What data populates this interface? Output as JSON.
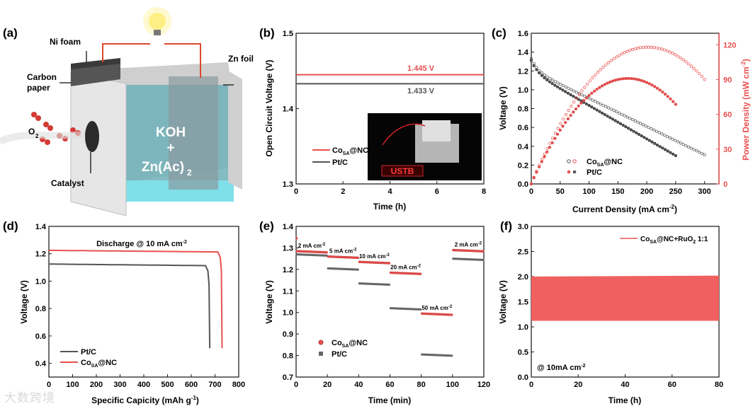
{
  "watermark": "大数跨境",
  "colors": {
    "red": "#e8504f",
    "gray": "#555555",
    "black": "#1a1a1a",
    "pinkline": "#f08080"
  },
  "panel_a": {
    "label": "(a)",
    "ni_foam": "Ni foam",
    "carbon_paper_1": "Carbon",
    "carbon_paper_2": "paper",
    "zn_foil": "Zn foil",
    "electrolyte_1": "KOH",
    "electrolyte_plus": "+",
    "electrolyte_2": "Zn(Ac)",
    "electrolyte_2_sub": "2",
    "o2": "O",
    "o2_sub": "2",
    "catalyst": "Catalyst"
  },
  "panel_b_photo_text": "USTB",
  "chart_data": [
    {
      "id": "b",
      "panel_label": "(b)",
      "type": "line",
      "xlabel": "Time (h)",
      "ylabel": "Open Circuit Voltage (V)",
      "xlim": [
        0,
        8
      ],
      "ylim": [
        1.3,
        1.5
      ],
      "xticks": [
        0,
        2,
        4,
        6,
        8
      ],
      "yticks": [
        1.3,
        1.4,
        1.5
      ],
      "series": [
        {
          "name": "Co_SA@NC",
          "x": [
            0,
            8
          ],
          "y": [
            1.445,
            1.445
          ]
        },
        {
          "name": "Pt/C",
          "x": [
            0,
            8
          ],
          "y": [
            1.433,
            1.433
          ]
        }
      ],
      "annotations": [
        "1.445 V",
        "1.433 V"
      ],
      "legend": [
        "Co",
        "SA",
        "@NC",
        "Pt/C"
      ]
    },
    {
      "id": "c",
      "panel_label": "(c)",
      "type": "scatter",
      "xlabel": "Current Density (mA cm",
      "xlabel_sup": "-2",
      "xlabel_end": ")",
      "ylabel": "Voltage (V)",
      "y2label": "Power Density (mW cm",
      "y2label_sup": "-2",
      "y2label_end": ")",
      "xlim": [
        0,
        325
      ],
      "ylim": [
        0,
        1.6
      ],
      "y2lim": [
        0,
        130
      ],
      "xticks": [
        0,
        50,
        100,
        150,
        200,
        250,
        300
      ],
      "yticks": [
        0.0,
        0.2,
        0.4,
        0.6,
        0.8,
        1.0,
        1.2,
        1.4,
        1.6
      ],
      "y2ticks": [
        0,
        30,
        60,
        90,
        120
      ],
      "series": [
        {
          "name": "Co_SA@NC voltage",
          "xmax": 300,
          "v0": 1.33,
          "vend": 0.31,
          "points": 65
        },
        {
          "name": "Pt/C voltage",
          "xmax": 250,
          "v0": 1.31,
          "vend": 0.3,
          "points": 55
        },
        {
          "name": "Co_SA@NC power",
          "peak_x": 200,
          "peak_y": 118,
          "xmax": 300
        },
        {
          "name": "Pt/C power",
          "peak_x": 175,
          "peak_y": 91,
          "xmax": 250
        }
      ],
      "legend": [
        "Co",
        "SA",
        "@NC",
        "Pt/C"
      ]
    },
    {
      "id": "d",
      "panel_label": "(d)",
      "type": "line",
      "xlabel": "Specific Capicity (mAh g",
      "xlabel_sup": "-1",
      "xlabel_end": ")",
      "ylabel": "Voltage (V)",
      "xlim": [
        0,
        800
      ],
      "ylim": [
        0.3,
        1.4
      ],
      "xticks": [
        0,
        100,
        200,
        300,
        400,
        500,
        600,
        700,
        800
      ],
      "yticks": [
        0.4,
        0.6,
        0.8,
        1.0,
        1.2,
        1.4
      ],
      "title": "Discharge @ 10 mA cm",
      "title_sup": "-2",
      "series": [
        {
          "name": "Pt/C",
          "plateau": 1.125,
          "end_x": 678,
          "end_y": 0.51
        },
        {
          "name": "Co_SA@NC",
          "plateau": 1.225,
          "end_x": 730,
          "end_y": 0.51
        }
      ],
      "legend": [
        "Pt/C",
        "Co",
        "SA",
        "@NC"
      ]
    },
    {
      "id": "e",
      "panel_label": "(e)",
      "type": "scatter",
      "xlabel": "Time (min)",
      "ylabel": "Voltage (V)",
      "xlim": [
        0,
        120
      ],
      "ylim": [
        0.7,
        1.4
      ],
      "xticks": [
        0,
        20,
        40,
        60,
        80,
        100,
        120
      ],
      "yticks": [
        0.7,
        0.8,
        0.9,
        1.0,
        1.1,
        1.2,
        1.3,
        1.4
      ],
      "steps": [
        {
          "x0": 0,
          "x1": 20,
          "co": 1.285,
          "pt": 1.27,
          "label": "2 mA cm"
        },
        {
          "x0": 20,
          "x1": 40,
          "co": 1.26,
          "pt": 1.205,
          "label": "5 mA cm"
        },
        {
          "x0": 40,
          "x1": 60,
          "co": 1.235,
          "pt": 1.135,
          "label": "10 mA cm"
        },
        {
          "x0": 60,
          "x1": 80,
          "co": 1.185,
          "pt": 1.02,
          "label": "20 mA cm"
        },
        {
          "x0": 80,
          "x1": 100,
          "co": 0.995,
          "pt": 0.805,
          "label": "50 mA cm"
        },
        {
          "x0": 100,
          "x1": 120,
          "co": 1.29,
          "pt": 1.25,
          "label": "2 mA cm"
        }
      ],
      "label_sup": "-2",
      "legend": [
        "Co",
        "SA",
        "@NC",
        "Pt/C"
      ]
    },
    {
      "id": "f",
      "panel_label": "(f)",
      "type": "area",
      "xlabel": "Time (h)",
      "ylabel": "Voltage (V)",
      "xlim": [
        0,
        80
      ],
      "ylim": [
        0,
        3.0
      ],
      "xticks": [
        0,
        20,
        40,
        60,
        80
      ],
      "yticks": [
        0.0,
        0.5,
        1.0,
        1.5,
        2.0,
        2.5,
        3.0
      ],
      "band": {
        "x0": 0,
        "x1": 80,
        "y_low": 1.12,
        "y_high_start": 2.0,
        "y_high_end": 2.02
      },
      "legend": [
        "Co",
        "SA",
        "@NC+RuO",
        "2",
        " 1:1"
      ],
      "note": "@ 10mA cm",
      "note_sup": "-2"
    }
  ]
}
